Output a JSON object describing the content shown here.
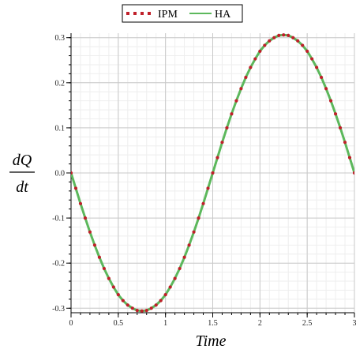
{
  "chart_data": {
    "type": "line",
    "xlabel": "Time",
    "ylabel_numerator": "dQ",
    "ylabel_denominator": "dt",
    "xlim": [
      0,
      3
    ],
    "ylim": [
      -0.31,
      0.31
    ],
    "x_ticks": [
      "0",
      "0.5",
      "1",
      "1.5",
      "2",
      "2.5",
      "3"
    ],
    "x_tick_values": [
      0,
      0.5,
      1,
      1.5,
      2,
      2.5,
      3
    ],
    "y_ticks": [
      "0.3",
      "0.2",
      "0.1",
      "0.0",
      "-0.1",
      "-0.2",
      "-0.3"
    ],
    "y_tick_values": [
      0.3,
      0.2,
      0.1,
      0.0,
      -0.1,
      -0.2,
      -0.3
    ],
    "grid": true,
    "legend_position": "top-center",
    "series": [
      {
        "name": "IPM",
        "style": "dotted",
        "color": "#c0202a",
        "x": [
          0,
          0.05,
          0.1,
          0.15,
          0.2,
          0.25,
          0.3,
          0.35,
          0.4,
          0.45,
          0.5,
          0.55,
          0.6,
          0.65,
          0.7,
          0.75,
          0.8,
          0.85,
          0.9,
          0.95,
          1.0,
          1.05,
          1.1,
          1.15,
          1.2,
          1.25,
          1.3,
          1.35,
          1.4,
          1.45,
          1.5,
          1.55,
          1.6,
          1.65,
          1.7,
          1.75,
          1.8,
          1.85,
          1.9,
          1.95,
          2.0,
          2.05,
          2.1,
          2.15,
          2.2,
          2.25,
          2.3,
          2.35,
          2.4,
          2.45,
          2.5,
          2.55,
          2.6,
          2.65,
          2.7,
          2.75,
          2.8,
          2.85,
          2.9,
          2.95,
          3.0
        ],
        "y": [
          0.0,
          -0.034,
          -0.068,
          -0.1,
          -0.131,
          -0.16,
          -0.187,
          -0.212,
          -0.234,
          -0.253,
          -0.27,
          -0.283,
          -0.293,
          -0.3,
          -0.305,
          -0.306,
          -0.305,
          -0.3,
          -0.293,
          -0.283,
          -0.27,
          -0.253,
          -0.234,
          -0.212,
          -0.187,
          -0.16,
          -0.131,
          -0.1,
          -0.068,
          -0.034,
          0.0,
          0.034,
          0.068,
          0.1,
          0.131,
          0.16,
          0.187,
          0.212,
          0.234,
          0.253,
          0.27,
          0.283,
          0.293,
          0.3,
          0.305,
          0.306,
          0.305,
          0.3,
          0.293,
          0.283,
          0.27,
          0.253,
          0.234,
          0.212,
          0.187,
          0.16,
          0.131,
          0.1,
          0.068,
          0.034,
          0.0
        ]
      },
      {
        "name": "HA",
        "style": "solid",
        "color": "#5cb85c",
        "x": [
          0,
          0.05,
          0.1,
          0.15,
          0.2,
          0.25,
          0.3,
          0.35,
          0.4,
          0.45,
          0.5,
          0.55,
          0.6,
          0.65,
          0.7,
          0.75,
          0.8,
          0.85,
          0.9,
          0.95,
          1.0,
          1.05,
          1.1,
          1.15,
          1.2,
          1.25,
          1.3,
          1.35,
          1.4,
          1.45,
          1.5,
          1.55,
          1.6,
          1.65,
          1.7,
          1.75,
          1.8,
          1.85,
          1.9,
          1.95,
          2.0,
          2.05,
          2.1,
          2.15,
          2.2,
          2.25,
          2.3,
          2.35,
          2.4,
          2.45,
          2.5,
          2.55,
          2.6,
          2.65,
          2.7,
          2.75,
          2.8,
          2.85,
          2.9,
          2.95,
          3.0
        ],
        "y": [
          0.0,
          -0.034,
          -0.068,
          -0.1,
          -0.131,
          -0.16,
          -0.187,
          -0.212,
          -0.234,
          -0.253,
          -0.27,
          -0.283,
          -0.293,
          -0.3,
          -0.305,
          -0.306,
          -0.305,
          -0.3,
          -0.293,
          -0.283,
          -0.27,
          -0.253,
          -0.234,
          -0.212,
          -0.187,
          -0.16,
          -0.131,
          -0.1,
          -0.068,
          -0.034,
          0.0,
          0.034,
          0.068,
          0.1,
          0.131,
          0.16,
          0.187,
          0.212,
          0.234,
          0.253,
          0.27,
          0.283,
          0.293,
          0.3,
          0.305,
          0.306,
          0.305,
          0.3,
          0.293,
          0.283,
          0.27,
          0.253,
          0.234,
          0.212,
          0.187,
          0.16,
          0.131,
          0.1,
          0.068,
          0.034,
          0.0
        ]
      }
    ]
  }
}
